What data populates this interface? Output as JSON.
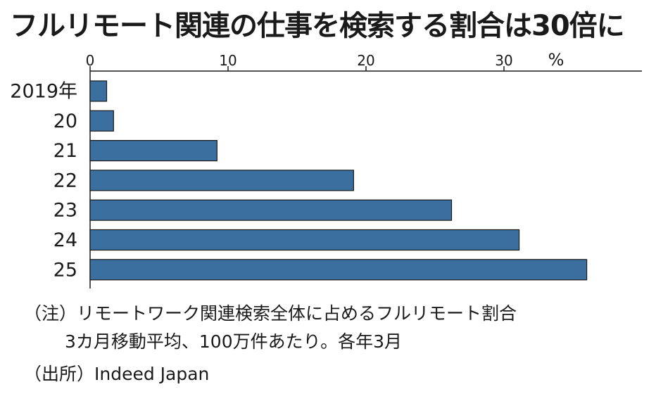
{
  "title": "フルリモート関連の仕事を検索する割合は30倍に",
  "chart_data": {
    "type": "bar",
    "orientation": "horizontal",
    "categories": [
      "2019年",
      "20",
      "21",
      "22",
      "23",
      "24",
      "25"
    ],
    "values": [
      1.2,
      1.7,
      9.2,
      19.1,
      26.2,
      31.1,
      36.0
    ],
    "xlim": [
      0,
      40
    ],
    "xticks": [
      0,
      10,
      20,
      30
    ],
    "xunit": "%",
    "grid": false,
    "bar_color": "#3a6fa0"
  },
  "notes": {
    "line1": "（注）リモートワーク関連検索全体に占めるフルリモート割合",
    "line2": "3カ月移動平均、100万件あたり。各年3月"
  },
  "source": "（出所）Indeed Japan"
}
